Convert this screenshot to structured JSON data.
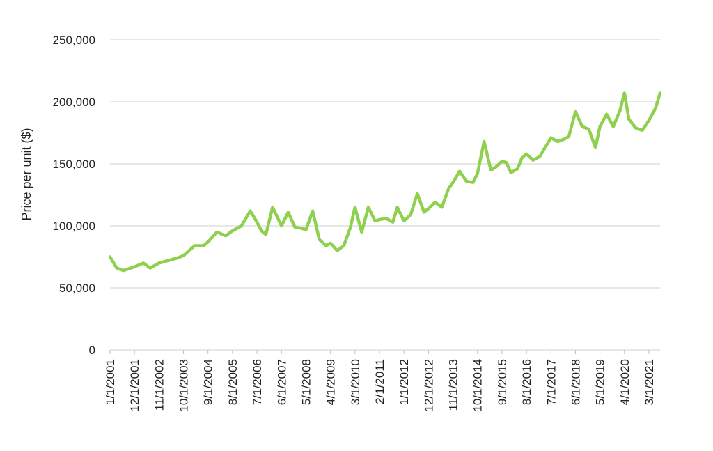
{
  "chart_data": {
    "type": "line",
    "title": "",
    "xlabel": "",
    "ylabel": "Price per unit ($)",
    "ylim": [
      0,
      250000
    ],
    "yticks": [
      "0",
      "50,000",
      "100,000",
      "150,000",
      "200,000",
      "250,000"
    ],
    "xticks": [
      "1/1/2001",
      "12/1/2001",
      "11/1/2002",
      "10/1/2003",
      "9/1/2004",
      "8/1/2005",
      "7/1/2006",
      "6/1/2007",
      "5/1/2008",
      "4/1/2009",
      "3/1/2010",
      "2/1/2011",
      "1/1/2012",
      "12/1/2012",
      "11/1/2013",
      "10/1/2014",
      "9/1/2015",
      "8/1/2016",
      "7/1/2017",
      "6/1/2018",
      "5/1/2019",
      "4/1/2020",
      "3/1/2021"
    ],
    "grid": true,
    "legend": "none",
    "colors": {
      "line": "#8fd14f",
      "grid": "#d9d9d9",
      "axis": "#bfbfbf",
      "text": "#222222"
    },
    "series": [
      {
        "x": [
          "1/1/2001",
          "4/1/2001",
          "7/1/2001",
          "12/1/2001",
          "4/1/2002",
          "7/1/2002",
          "11/1/2002",
          "3/1/2003",
          "7/1/2003",
          "10/1/2003",
          "3/1/2004",
          "7/1/2004",
          "9/1/2004",
          "1/1/2005",
          "5/1/2005",
          "8/1/2005",
          "12/1/2005",
          "4/1/2006",
          "7/1/2006",
          "9/1/2006",
          "11/1/2006",
          "2/1/2007",
          "6/1/2007",
          "9/1/2007",
          "12/1/2007",
          "3/1/2008",
          "5/1/2008",
          "8/1/2008",
          "11/1/2008",
          "2/1/2009",
          "4/1/2009",
          "7/1/2009",
          "10/1/2009",
          "1/1/2010",
          "3/1/2010",
          "6/1/2010",
          "9/1/2010",
          "12/1/2010",
          "2/1/2011",
          "5/1/2011",
          "8/1/2011",
          "10/1/2011",
          "1/1/2012",
          "4/1/2012",
          "7/1/2012",
          "10/1/2012",
          "12/1/2012",
          "3/1/2013",
          "6/1/2013",
          "9/1/2013",
          "11/1/2013",
          "2/1/2014",
          "5/1/2014",
          "8/1/2014",
          "10/1/2014",
          "1/1/2015",
          "4/1/2015",
          "6/1/2015",
          "9/1/2015",
          "11/1/2015",
          "1/1/2016",
          "4/1/2016",
          "6/1/2016",
          "8/1/2016",
          "11/1/2016",
          "2/1/2017",
          "4/1/2017",
          "7/1/2017",
          "10/1/2017",
          "1/1/2018",
          "3/1/2018",
          "6/1/2018",
          "9/1/2018",
          "12/1/2018",
          "3/1/2019",
          "5/1/2019",
          "8/1/2019",
          "11/1/2019",
          "2/1/2020",
          "4/1/2020",
          "6/1/2020",
          "9/1/2020",
          "12/1/2020",
          "3/1/2021",
          "6/1/2021",
          "8/1/2021"
        ],
        "values": [
          75000,
          66000,
          64000,
          67000,
          70000,
          66000,
          70000,
          72000,
          74000,
          76000,
          84000,
          84000,
          87000,
          95000,
          92000,
          96000,
          100000,
          112000,
          103000,
          96000,
          93000,
          115000,
          100000,
          111000,
          99000,
          98000,
          97000,
          112000,
          89000,
          84000,
          86000,
          80000,
          84000,
          99000,
          115000,
          95000,
          115000,
          104000,
          105000,
          106000,
          103000,
          115000,
          104000,
          109000,
          126000,
          111000,
          114000,
          119000,
          115000,
          130000,
          135000,
          144000,
          136000,
          135000,
          142000,
          168000,
          145000,
          147000,
          152000,
          151000,
          143000,
          146000,
          155000,
          158000,
          153000,
          156000,
          162000,
          171000,
          168000,
          170000,
          172000,
          192000,
          180000,
          178000,
          163000,
          180000,
          190000,
          180000,
          193000,
          207000,
          186000,
          179000,
          177000,
          185000,
          195000,
          207000
        ]
      }
    ]
  }
}
